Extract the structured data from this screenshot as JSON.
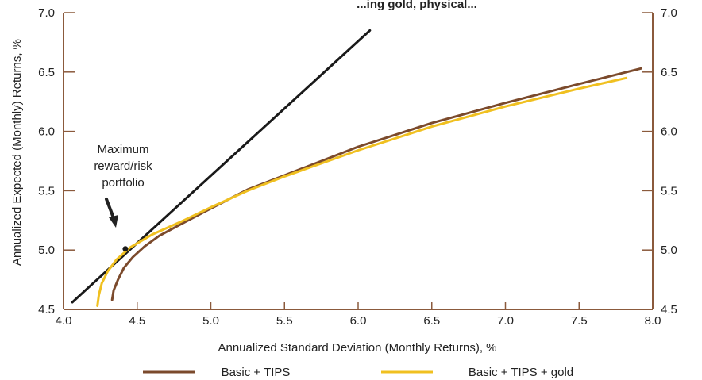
{
  "chart_data": {
    "type": "line",
    "title": "...ing gold, physical...",
    "xlabel": "Annualized Standard Deviation (Monthly Returns), %",
    "ylabel": "Annualized Expected (Monthly) Returns, %",
    "xlim": [
      4.0,
      8.0
    ],
    "ylim": [
      4.5,
      7.0
    ],
    "x_ticks": [
      "4.0",
      "4.5",
      "5.0",
      "5.5",
      "6.0",
      "6.5",
      "7.0",
      "7.5",
      "8.0"
    ],
    "y_ticks": [
      "4.5",
      "5.0",
      "5.5",
      "6.0",
      "6.5",
      "7.0"
    ],
    "grid": false,
    "legend_position": "bottom",
    "series": [
      {
        "name": "Basic + TIPS",
        "color": "#7b4a2c",
        "x": [
          4.33,
          4.34,
          4.37,
          4.41,
          4.47,
          4.55,
          4.65,
          4.8,
          5.0,
          5.25,
          5.5,
          6.0,
          6.5,
          7.0,
          7.5,
          7.92
        ],
        "y": [
          4.58,
          4.66,
          4.75,
          4.85,
          4.94,
          5.03,
          5.12,
          5.22,
          5.35,
          5.51,
          5.63,
          5.87,
          6.07,
          6.24,
          6.4,
          6.53
        ]
      },
      {
        "name": "Basic + TIPS + gold",
        "color": "#f0c020",
        "x": [
          4.23,
          4.24,
          4.26,
          4.3,
          4.36,
          4.45,
          4.6,
          4.8,
          5.0,
          5.25,
          5.5,
          6.0,
          6.5,
          7.0,
          7.5,
          7.82
        ],
        "y": [
          4.53,
          4.62,
          4.72,
          4.82,
          4.92,
          5.02,
          5.13,
          5.24,
          5.36,
          5.5,
          5.62,
          5.84,
          6.04,
          6.21,
          6.36,
          6.45
        ]
      },
      {
        "name": "",
        "color": "#1a1a1a",
        "x": [
          4.06,
          6.08
        ],
        "y": [
          4.56,
          6.85
        ]
      }
    ],
    "annotations": [
      {
        "text_lines": [
          "Maximum",
          "reward/risk",
          "portfolio"
        ],
        "point": {
          "x": 4.42,
          "y": 5.01
        },
        "arrow_color": "#222222"
      }
    ]
  }
}
